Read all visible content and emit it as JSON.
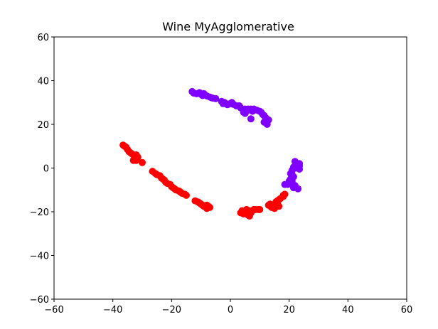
{
  "chart_data": {
    "type": "scatter",
    "title": "Wine MyAgglomerative",
    "xlabel": "",
    "ylabel": "",
    "xlim": [
      -60,
      60
    ],
    "ylim": [
      -60,
      60
    ],
    "x_ticks": [
      -60,
      -40,
      -20,
      0,
      20,
      40,
      60
    ],
    "y_ticks": [
      -60,
      -40,
      -20,
      0,
      20,
      40,
      60
    ],
    "grid": false,
    "legend": "none",
    "series": [
      {
        "color": "#8000ff",
        "points": [
          [
            -13,
            35
          ],
          [
            -12.5,
            34.3
          ],
          [
            -11.5,
            34
          ],
          [
            -10.5,
            34.5
          ],
          [
            -10,
            33.8
          ],
          [
            -9.5,
            33.2
          ],
          [
            -9,
            34
          ],
          [
            -8,
            33
          ],
          [
            -7,
            32.5
          ],
          [
            -6.5,
            32.2
          ],
          [
            -6,
            32
          ],
          [
            -5,
            31.8
          ],
          [
            -3,
            30.5
          ],
          [
            -2.5,
            29.5
          ],
          [
            -2,
            30
          ],
          [
            -1.5,
            29.5
          ],
          [
            -1,
            29
          ],
          [
            0,
            29.5
          ],
          [
            0.5,
            30
          ],
          [
            1,
            29.2
          ],
          [
            2,
            28.5
          ],
          [
            3,
            28.5
          ],
          [
            3.5,
            27.5
          ],
          [
            5,
            27
          ],
          [
            5.5,
            26
          ],
          [
            6,
            27
          ],
          [
            7,
            27
          ],
          [
            7.5,
            26
          ],
          [
            8,
            27
          ],
          [
            9,
            26.5
          ],
          [
            10,
            26
          ],
          [
            10.5,
            25.5
          ],
          [
            11,
            24.5
          ],
          [
            11.5,
            24
          ],
          [
            12,
            23
          ],
          [
            13,
            22
          ],
          [
            11.5,
            21
          ],
          [
            12.5,
            20
          ],
          [
            5,
            25
          ],
          [
            4.5,
            25.5
          ],
          [
            7,
            22.5
          ],
          [
            22,
            3
          ],
          [
            23.5,
            2
          ],
          [
            23.5,
            1
          ],
          [
            21.5,
            0.5
          ],
          [
            22.5,
            0.8
          ],
          [
            23.5,
            -0.5
          ],
          [
            22.2,
            0
          ],
          [
            21,
            -1
          ],
          [
            20.5,
            -2.5
          ],
          [
            21,
            -3
          ],
          [
            21.5,
            -4
          ],
          [
            20.5,
            -5
          ],
          [
            20,
            -6
          ],
          [
            21,
            -6
          ],
          [
            20,
            -7
          ],
          [
            21,
            -7.5
          ],
          [
            19.5,
            -7.5
          ],
          [
            22,
            -8
          ],
          [
            21.5,
            -9
          ],
          [
            23,
            -9.5
          ],
          [
            18.5,
            -7.5
          ]
        ]
      },
      {
        "color": "#ff0000",
        "points": [
          [
            -36.5,
            10.5
          ],
          [
            -36,
            10
          ],
          [
            -35.5,
            9.5
          ],
          [
            -35,
            8.5
          ],
          [
            -34.5,
            7.5
          ],
          [
            -34,
            7
          ],
          [
            -33.5,
            6.5
          ],
          [
            -33,
            6
          ],
          [
            -32.5,
            5.5
          ],
          [
            -32,
            6
          ],
          [
            -31.5,
            5
          ],
          [
            -32.5,
            4.5
          ],
          [
            -33,
            3.5
          ],
          [
            -32,
            3.5
          ],
          [
            -30,
            2.5
          ],
          [
            -26.5,
            -1.5
          ],
          [
            -25.5,
            -2.5
          ],
          [
            -25,
            -3
          ],
          [
            -24,
            -3.5
          ],
          [
            -23.5,
            -4.5
          ],
          [
            -23,
            -5
          ],
          [
            -22.5,
            -5.5
          ],
          [
            -22,
            -6.5
          ],
          [
            -21.5,
            -7
          ],
          [
            -20.5,
            -7.5
          ],
          [
            -20,
            -8.5
          ],
          [
            -19.5,
            -9
          ],
          [
            -19,
            -9.5
          ],
          [
            -18.5,
            -10
          ],
          [
            -17.5,
            -10.5
          ],
          [
            -17,
            -11
          ],
          [
            -16.5,
            -11.5
          ],
          [
            -15.5,
            -12
          ],
          [
            -15,
            -12.5
          ],
          [
            -12,
            -15
          ],
          [
            -11,
            -15.5
          ],
          [
            -10.5,
            -16
          ],
          [
            -10,
            -16.5
          ],
          [
            -9.5,
            -17
          ],
          [
            -9,
            -17.5
          ],
          [
            -8,
            -17
          ],
          [
            -7.5,
            -17.5
          ],
          [
            -8,
            -18.5
          ],
          [
            -7,
            -18
          ],
          [
            3.5,
            -20.5
          ],
          [
            4,
            -19.5
          ],
          [
            4.5,
            -20
          ],
          [
            5,
            -20.5
          ],
          [
            5.5,
            -21
          ],
          [
            6,
            -21.5
          ],
          [
            6.5,
            -22
          ],
          [
            7,
            -20.5
          ],
          [
            6.5,
            -19.5
          ],
          [
            7.5,
            -19.5
          ],
          [
            8,
            -19
          ],
          [
            8.5,
            -19
          ],
          [
            9.5,
            -19
          ],
          [
            10,
            -19
          ],
          [
            4.5,
            -21
          ],
          [
            5.5,
            -19
          ],
          [
            13,
            -17
          ],
          [
            13.5,
            -16.5
          ],
          [
            14,
            -18
          ],
          [
            14.5,
            -17.5
          ],
          [
            15,
            -17
          ],
          [
            15.5,
            -16
          ],
          [
            16,
            -16.5
          ],
          [
            16.5,
            -17.5
          ],
          [
            15,
            -18.5
          ],
          [
            15.5,
            -15.5
          ],
          [
            16,
            -15
          ],
          [
            16.5,
            -14.5
          ],
          [
            17,
            -14
          ],
          [
            18,
            -13
          ],
          [
            18.5,
            -12
          ],
          [
            18,
            -12.5
          ]
        ]
      }
    ]
  }
}
